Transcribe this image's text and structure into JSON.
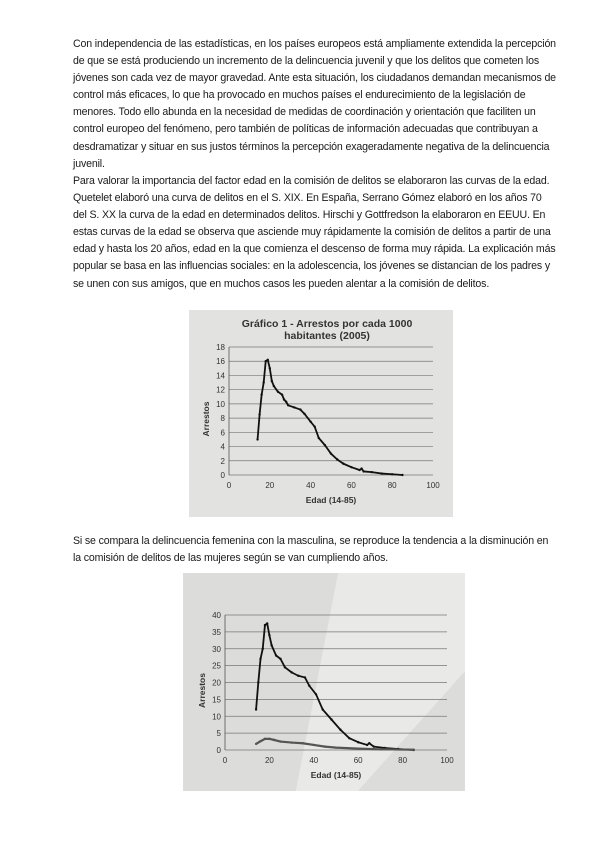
{
  "paragraphs": [
    "Con independencia de las estadísticas, en los países europeos está ampliamente extendida la percepción de que se está produciendo un incremento de la delincuencia juvenil y que los delitos que cometen los jóvenes son cada vez de mayor gravedad. Ante esta situación, los ciudadanos demandan mecanismos de control más eficaces, lo que ha provocado en muchos países el endurecimiento de la legislación de menores. Todo ello abunda en la necesidad de medidas de coordinación y orientación que faciliten un control europeo del fenómeno, pero también de políticas de información adecuadas que contribuyan a desdramatizar y situar en sus justos términos la percepción exageradamente negativa de la delincuencia juvenil.",
    "Para valorar la importancia del factor edad en la comisión de delitos se elaboraron las curvas de la edad. Quetelet elaboró una curva de delitos en el S. XIX. En España, Serrano Gómez elaboró en los años 70 del S. XX la curva de la edad en determinados delitos. Hirschi y Gottfredson la elaboraron en EEUU. En estas curvas de la edad se observa que asciende muy rápidamente la comisión de delitos a partir de una edad y hasta los 20 años, edad en la que comienza el descenso de forma muy rápida. La explicación más popular se basa en las influencias sociales: en la adolescencia, los jóvenes se distancian de los padres y se unen con sus amigos, que en muchos casos les pueden alentar a la comisión de delitos.",
    "Si se compara la delincuencia femenina con la masculina, se reproduce la tendencia a la disminución en la comisión de delitos de las mujeres según se van cumpliendo años."
  ],
  "chart_data": [
    {
      "type": "line",
      "title": "Gráfico 1 - Arrestos por cada 1000 habitantes (2005)",
      "xlabel": "Edad (14-85)",
      "ylabel": "Arrestos",
      "xlim": [
        0,
        100
      ],
      "ylim": [
        0,
        18
      ],
      "xticks": [
        0,
        20,
        40,
        60,
        80,
        100
      ],
      "yticks": [
        0,
        2,
        4,
        6,
        8,
        10,
        12,
        14,
        16,
        18
      ],
      "grid": "horizontal",
      "series": [
        {
          "color": "#111111",
          "x": [
            14,
            15,
            16,
            17,
            18,
            19,
            20,
            21,
            22,
            24,
            26,
            27,
            28,
            29,
            32,
            35,
            37,
            40,
            42,
            44,
            47,
            50,
            53,
            56,
            60,
            64,
            65,
            66,
            70,
            75,
            80,
            85
          ],
          "y": [
            5,
            8.5,
            11.3,
            13,
            16,
            16.2,
            15,
            13.2,
            12.5,
            11.7,
            11.3,
            10.6,
            10.3,
            9.8,
            9.5,
            9.2,
            8.6,
            7.5,
            6.8,
            5.2,
            4.2,
            3,
            2.2,
            1.6,
            1.1,
            0.7,
            0.9,
            0.5,
            0.4,
            0.2,
            0.1,
            0
          ]
        }
      ]
    },
    {
      "type": "line",
      "title": "",
      "xlabel": "Edad (14-85)",
      "ylabel": "Arrestos",
      "xlim": [
        0,
        100
      ],
      "ylim": [
        0,
        40
      ],
      "xticks": [
        0,
        20,
        40,
        60,
        80,
        100
      ],
      "yticks": [
        0,
        5,
        10,
        15,
        20,
        25,
        30,
        35,
        40
      ],
      "grid": "horizontal",
      "series": [
        {
          "color": "#111111",
          "x": [
            14,
            15,
            16,
            17,
            18,
            19,
            20,
            21,
            23,
            25,
            27,
            30,
            33,
            36,
            38,
            41,
            44,
            48,
            52,
            56,
            60,
            64,
            65,
            67,
            72,
            78,
            85
          ],
          "y": [
            12,
            20,
            27,
            30,
            37,
            37.5,
            34,
            31,
            28,
            27,
            24.5,
            23,
            22,
            21.5,
            19,
            16.5,
            12,
            9,
            6,
            3.5,
            2.3,
            1.5,
            2,
            1,
            0.6,
            0.3,
            0
          ]
        },
        {
          "color": "#555555",
          "x": [
            14,
            16,
            18,
            20,
            22,
            25,
            30,
            35,
            40,
            45,
            50,
            60,
            70,
            85
          ],
          "y": [
            1.8,
            2.6,
            3.3,
            3.3,
            3,
            2.5,
            2.2,
            2,
            1.5,
            1,
            0.7,
            0.4,
            0.2,
            0.1
          ]
        }
      ]
    }
  ]
}
